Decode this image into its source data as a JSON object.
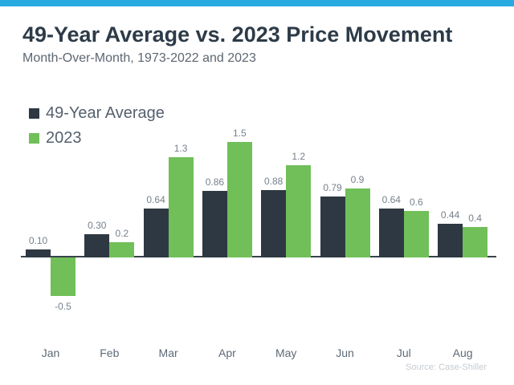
{
  "topbar": {
    "color": "#29abe2"
  },
  "header": {
    "title": "49-Year Average vs. 2023 Price Movement",
    "subtitle": "Month-Over-Month, 1973-2022 and 2023"
  },
  "legend": [
    {
      "label": "49-Year Average",
      "color": "#2e3842"
    },
    {
      "label": "2023",
      "color": "#70bf58"
    }
  ],
  "source": "Source: Case-Shiller",
  "colors": {
    "accent_topbar": "#29abe2",
    "series_dark": "#2e3842",
    "series_green": "#70bf58",
    "axis_line": "#3a434c",
    "value_label": "#76818d",
    "month_label": "#5d6a77"
  },
  "chart_data": {
    "type": "bar",
    "title": "49-Year Average vs. 2023 Price Movement",
    "subtitle": "Month-Over-Month, 1973-2022 and 2023",
    "categories": [
      "Jan",
      "Feb",
      "Mar",
      "Apr",
      "May",
      "Jun",
      "Jul",
      "Aug"
    ],
    "series": [
      {
        "name": "49-Year Average",
        "color": "#2e3842",
        "values": [
          0.1,
          0.3,
          0.64,
          0.86,
          0.88,
          0.79,
          0.64,
          0.44
        ],
        "labels": [
          "0.10",
          "0.30",
          "0.64",
          "0.86",
          "0.88",
          "0.79",
          "0.64",
          "0.44"
        ]
      },
      {
        "name": "2023",
        "color": "#70bf58",
        "values": [
          -0.5,
          0.2,
          1.3,
          1.5,
          1.2,
          0.9,
          0.6,
          0.4
        ],
        "labels": [
          "-0.5",
          "0.2",
          "1.3",
          "1.5",
          "1.2",
          "0.9",
          "0.6",
          "0.4"
        ]
      }
    ],
    "xlabel": "",
    "ylabel": "",
    "ylim": [
      -0.6,
      1.6
    ],
    "grid": false,
    "value_labels": true,
    "legend_position": "top-left",
    "source": "Source: Case-Shiller"
  }
}
